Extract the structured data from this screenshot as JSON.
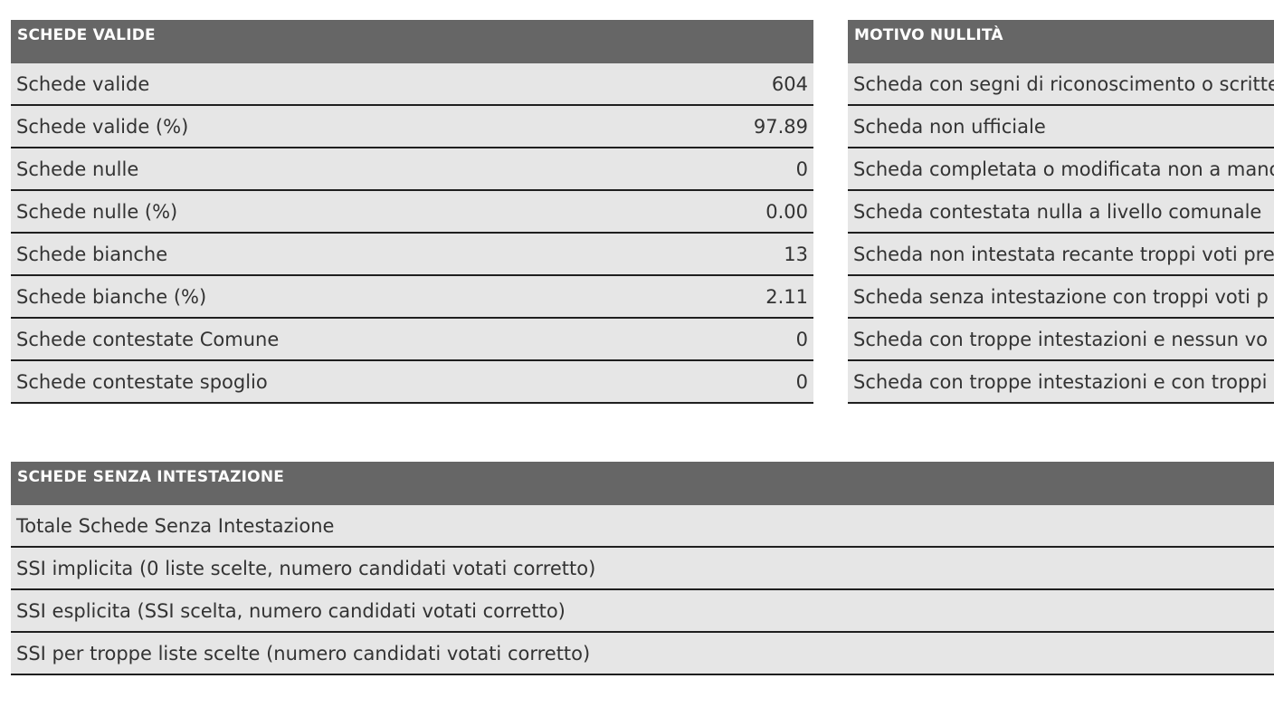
{
  "schede_valide": {
    "header": "SCHEDE VALIDE",
    "rows": [
      {
        "label": "Schede valide",
        "value": "604"
      },
      {
        "label": "Schede valide (%)",
        "value": "97.89"
      },
      {
        "label": "Schede nulle",
        "value": "0"
      },
      {
        "label": "Schede nulle (%)",
        "value": "0.00"
      },
      {
        "label": "Schede bianche",
        "value": "13"
      },
      {
        "label": "Schede bianche (%)",
        "value": "2.11"
      },
      {
        "label": "Schede contestate Comune",
        "value": "0"
      },
      {
        "label": "Schede contestate spoglio",
        "value": "0"
      }
    ]
  },
  "motivo_nullita": {
    "header": "MOTIVO NULLITÀ",
    "rows": [
      {
        "label": "Scheda con segni di riconoscimento o scritte"
      },
      {
        "label": "Scheda non ufficiale"
      },
      {
        "label": "Scheda completata o modificata non a mano"
      },
      {
        "label": "Scheda contestata nulla a livello comunale"
      },
      {
        "label": "Scheda non intestata recante troppi voti pre"
      },
      {
        "label": "Scheda senza intestazione con troppi voti p"
      },
      {
        "label": "Scheda con troppe intestazioni e nessun vo"
      },
      {
        "label": "Scheda con troppe intestazioni e con troppi"
      }
    ]
  },
  "schede_senza_intestazione": {
    "header": "SCHEDE SENZA INTESTAZIONE",
    "rows": [
      {
        "label": "Totale Schede Senza Intestazione"
      },
      {
        "label": "SSI implicita (0 liste scelte, numero candidati votati corretto)"
      },
      {
        "label": "SSI esplicita (SSI scelta, numero candidati votati corretto)"
      },
      {
        "label": "SSI per troppe liste scelte (numero candidati votati corretto)"
      }
    ]
  }
}
